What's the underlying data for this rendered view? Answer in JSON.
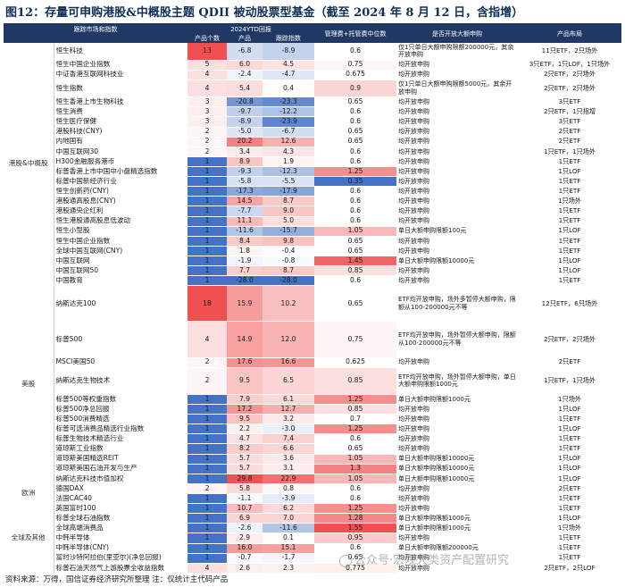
{
  "title": "图12：存量可申购港股&中概股主题 QDII 被动股票型基金（截至 2024 年 8 月 12 日，含指增）",
  "header": {
    "market": "跟踪市场和指数",
    "ytd": "2024YTD回报",
    "count": "产品个数",
    "product_ret": "产品",
    "index_ret": "跟踪指数",
    "fee": "管理费+托管费中位数",
    "subscribe": "是否开放大额申购",
    "dist": "产品布局"
  },
  "colors": {
    "header_bg": "#1f3864",
    "title": "#0f2e57",
    "red_max": "#f0504f",
    "blue_max": "#4472c4"
  },
  "groups": [
    {
      "name": "港股&中概股",
      "rows": [
        {
          "name": "恒生科技",
          "count": "13",
          "prod": "-6.8",
          "idx": "-8.9",
          "fee": "0.6",
          "sub": "仅1只单日大额申购限额200000元，其余开放申购",
          "dist": "11只ETF，2只场外"
        },
        {
          "name": "恒生中国企业指数",
          "count": "5",
          "prod": "6.0",
          "idx": "4.5",
          "fee": "0.75",
          "sub": "均开放申购",
          "dist": "3只ETF，1只LOF，1只场外"
        },
        {
          "name": "中证香港互联网科技业",
          "count": "4",
          "prod": "-2.4",
          "idx": "-4.7",
          "fee": "0.675",
          "sub": "均开放申购",
          "dist": "2只ETF，2只场外"
        },
        {
          "name": "恒生指数",
          "count": "4",
          "prod": "5.4",
          "idx": "0.4",
          "fee": "0.9",
          "sub": "仅1只单日大额申购限额5000元，其余开放申购",
          "dist": "2只ETF，2只场外"
        },
        {
          "name": "恒生香港上市生物科技",
          "count": "3",
          "prod": "-20.8",
          "idx": "-23.3",
          "fee": "0.65",
          "sub": "均开放申购",
          "dist": "3只ETF"
        },
        {
          "name": "恒生消费",
          "count": "3",
          "prod": "-9.7",
          "idx": "-12.2",
          "fee": "0.6",
          "sub": "均开放申购",
          "dist": "2只ETF，1只指增"
        },
        {
          "name": "恒生医疗保健",
          "count": "3",
          "prod": "-8.9",
          "idx": "-23.9",
          "fee": "0.6",
          "sub": "均开放申购",
          "dist": "3只ETF"
        },
        {
          "name": "港股科技(CNY)",
          "count": "2",
          "prod": "-5.0",
          "idx": "-6.7",
          "fee": "0.65",
          "sub": "均开放申购",
          "dist": "2只ETF"
        },
        {
          "name": "内地国有",
          "count": "2",
          "prod": "20.2",
          "idx": "12.6",
          "fee": "0.65",
          "sub": "均开放申购",
          "dist": "2只ETF"
        },
        {
          "name": "中国互联网30",
          "count": "2",
          "prod": "3.4",
          "idx": "4.3",
          "fee": "0.6",
          "sub": "均开放申购",
          "dist": "1只ETF，1只场外"
        },
        {
          "name": "H300金融服务港币",
          "count": "1",
          "prod": "8.9",
          "idx": "1.9",
          "fee": "0.6",
          "sub": "均开放申购",
          "dist": "1只ETF"
        },
        {
          "name": "标普香港上市中国中小盘精选指数",
          "count": "1",
          "prod": "-9.3",
          "idx": "-12.3",
          "fee": "1.25",
          "sub": "均开放申购",
          "dist": "1只LOF"
        },
        {
          "name": "标普中国新经济行业",
          "count": "1",
          "prod": "-5.8",
          "idx": "-5.5",
          "fee": "0.35",
          "sub": "均开放申购",
          "dist": "1只ETF"
        },
        {
          "name": "恒生创新药(CNY)",
          "count": "1",
          "prod": "-17.3",
          "idx": "-17.9",
          "fee": "0.6",
          "sub": "均开放申购",
          "dist": "1只ETF"
        },
        {
          "name": "港股通高股息(CNY)",
          "count": "1",
          "prod": "14.5",
          "idx": "8.7",
          "fee": "0.6",
          "sub": "均开放申购",
          "dist": "1只场外"
        },
        {
          "name": "港股通央企红利",
          "count": "1",
          "prod": "-7.7",
          "idx": "9.0",
          "fee": "0.6",
          "sub": "均开放申购",
          "dist": "1只ETF"
        },
        {
          "name": "恒生港股通高股息低波动",
          "count": "1",
          "prod": "11.1",
          "idx": "5.0",
          "fee": "0.6",
          "sub": "均开放申购",
          "dist": "1只ETF"
        },
        {
          "name": "恒生小型股",
          "count": "1",
          "prod": "-11.6",
          "idx": "-15.7",
          "fee": "1.05",
          "sub": "单日大额申购限额100元",
          "dist": "1只LOF"
        },
        {
          "name": "恒生中国企业指数",
          "count": "1",
          "prod": "8.4",
          "idx": "9.8",
          "fee": "0.65",
          "sub": "均开放申购",
          "dist": "1只ETF"
        },
        {
          "name": "全球中国互联网(CNY)",
          "count": "1",
          "prod": "1.8",
          "idx": "-0.4",
          "fee": "0.65",
          "sub": "均开放申购",
          "dist": "1只ETF"
        },
        {
          "name": "中国互联网",
          "count": "1",
          "prod": "-1.9",
          "idx": "-0.8",
          "fee": "1.45",
          "sub": "单日大额申购限额10000元",
          "dist": "1只LOF"
        },
        {
          "name": "中国互联网50",
          "count": "1",
          "prod": "7.7",
          "idx": "8.7",
          "fee": "0.85",
          "sub": "均开放申购",
          "dist": "1只LOF"
        },
        {
          "name": "中国教育",
          "count": "1",
          "prod": "-28.0",
          "idx": "-28.0",
          "fee": "0.6",
          "sub": "均开放申购",
          "dist": "1只ETF"
        }
      ]
    },
    {
      "name": "美股",
      "rows": [
        {
          "name": "纳斯达克100",
          "count": "18",
          "prod": "15.9",
          "idx": "10.2",
          "fee": "0.65",
          "sub": "ETF均开放申购，场外多暂停大额申购，限额从100-200000元不等",
          "dist": "12只ETF，6只场外",
          "lines": 4
        },
        {
          "name": "标普500",
          "count": "4",
          "prod": "14.9",
          "idx": "12.0",
          "fee": "0.75",
          "sub": "ETF均开放申购，场外暂停大额申购，限额从100-200000元不等",
          "dist": "2只ETF，2只场外",
          "lines": 4
        },
        {
          "name": "MSCI美国50",
          "count": "2",
          "prod": "17.6",
          "idx": "16.6",
          "fee": "0.625",
          "sub": "均开放申购",
          "dist": "2只ETF"
        },
        {
          "name": "纳斯达克生物技术",
          "count": "2",
          "prod": "9.5",
          "idx": "6.5",
          "fee": "0.85",
          "sub": "ETF均开放申购，场外暂停大额申购，单日大额申购限额1000元",
          "dist": "1只ETF，1只场外",
          "lines": 3
        },
        {
          "name": "标普500等权重指数",
          "count": "1",
          "prod": "7.9",
          "idx": "6.1",
          "fee": "1.25",
          "sub": "单日大额申购限额1000元",
          "dist": "1只场外"
        },
        {
          "name": "标普500净总回报",
          "count": "1",
          "prod": "17.2",
          "idx": "12.7",
          "fee": "0.85",
          "sub": "均开放申购",
          "dist": "1只LOF"
        },
        {
          "name": "标普500消费精选",
          "count": "1",
          "prod": "9.5",
          "idx": "3.2",
          "fee": "0.7",
          "sub": "均开放申购",
          "dist": "1只ETF"
        },
        {
          "name": "标普可选消费品精选行业指数",
          "count": "1",
          "prod": "2.2",
          "idx": "-3.0",
          "fee": "1.25",
          "sub": "均开放申购",
          "dist": "1只LOF"
        },
        {
          "name": "标普生物技术精选行业",
          "count": "1",
          "prod": "4.7",
          "idx": "7.4",
          "fee": "0.6",
          "sub": "均开放申购",
          "dist": "1只ETF"
        },
        {
          "name": "道琼斯工业指数",
          "count": "1",
          "prod": "8.2",
          "idx": "6.6",
          "fee": "0.65",
          "sub": "均开放申购",
          "dist": "1只ETF"
        },
        {
          "name": "道琼斯美国精选REIT",
          "count": "1",
          "prod": "5.7",
          "idx": "3.6",
          "fee": "1.05",
          "sub": "单日大额申购限额10000元",
          "dist": "1只LOF"
        },
        {
          "name": "道琼斯美国石油开发与生产",
          "count": "1",
          "prod": "5.7",
          "idx": "3.1",
          "fee": "1.3",
          "sub": "单日大额申购限额10000元",
          "dist": "1只LOF"
        },
        {
          "name": "纳斯达克科技市值加权",
          "count": "1",
          "prod": "29.8",
          "idx": "22.9",
          "fee": "1.05",
          "sub": "单日大额申购限额10000元",
          "dist": "1只LOF"
        }
      ]
    },
    {
      "name": "欧洲",
      "rows": [
        {
          "name": "德国DAX",
          "count": "2",
          "prod": "5.8",
          "idx": "0.8",
          "fee": "0.6",
          "sub": "均开放申购",
          "dist": "2只ETF"
        },
        {
          "name": "法国CAC40",
          "count": "1",
          "prod": "-1.1",
          "idx": "-3.9",
          "fee": "0.6",
          "sub": "均开放申购",
          "dist": "1只ETF"
        }
      ]
    },
    {
      "name": "全球及其他",
      "rows": [
        {
          "name": "英国富时100",
          "count": "1",
          "prod": "10.7",
          "idx": "6.2",
          "fee": "1.25",
          "sub": "均开放申购",
          "dist": "1只ETF"
        },
        {
          "name": "标普全球石油指数",
          "count": "1",
          "prod": "6.9",
          "idx": "7.0",
          "fee": "1.28",
          "sub": "单日大额申购限额1000元",
          "dist": "1只LOF"
        },
        {
          "name": "全球高端消费品",
          "count": "1",
          "prod": "-2.6",
          "idx": "-11.6",
          "fee": "1.55",
          "sub": "单日大额申购限额1000元",
          "dist": "1只场外"
        },
        {
          "name": "中韩半导体",
          "count": "1",
          "prod": "2.9",
          "idx": "0.1",
          "fee": "0.95",
          "sub": "均开放申购",
          "dist": "1只ETF"
        },
        {
          "name": "中韩半导体(CNY)",
          "count": "1",
          "prod": "16.0",
          "idx": "15.1",
          "fee": "0.6",
          "sub": "单日大额申购限额200000元",
          "dist": "1只ETF"
        },
        {
          "name": "富时沙特阿拉伯(里亚尔)(净总回报)",
          "count": "1",
          "prod": "-0.7",
          "idx": "-1.7",
          "fee": "0.65",
          "sub": "均开放申购",
          "dist": "1只ETF"
        },
        {
          "name": "标普石油天然气上游股票全收益指数",
          "count": "4",
          "prod": "2.6",
          "idx": "2.3",
          "fee": "0.775",
          "sub": "均开放申购",
          "dist": "2只ETF，2只LOF"
        }
      ]
    }
  ],
  "footer": "资料来源：万得，国信证券经济研究所整理    注：仅统计主代码产品",
  "watermark": "公众号·宏观大类资产配置研究"
}
